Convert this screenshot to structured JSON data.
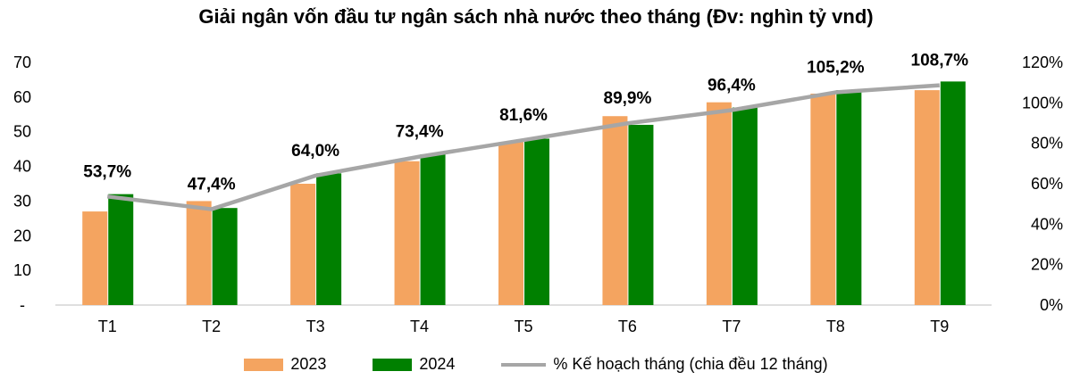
{
  "chart_data": {
    "type": "bar",
    "title": "Giải ngân vốn đầu tư ngân sách nhà nước theo tháng (Đv: nghìn tỷ vnd)",
    "categories": [
      "T1",
      "T2",
      "T3",
      "T4",
      "T5",
      "T6",
      "T7",
      "T8",
      "T9"
    ],
    "series": [
      {
        "name": "2023",
        "type": "bar",
        "axis": "left",
        "color": "#F4A460",
        "values": [
          27,
          30,
          35,
          41.5,
          47,
          54.5,
          58.5,
          61,
          62
        ]
      },
      {
        "name": "2024",
        "type": "bar",
        "axis": "right_as_left",
        "color": "#008000",
        "values": [
          32,
          28,
          38,
          43.5,
          48,
          52,
          57,
          62,
          64.5
        ]
      },
      {
        "name": "% Kế hoạch tháng (chia đều 12 tháng)",
        "type": "line",
        "axis": "right",
        "color": "#A6A6A6",
        "values": [
          53.7,
          47.4,
          64.0,
          73.4,
          81.6,
          89.9,
          96.4,
          105.2,
          108.7
        ],
        "labels": [
          "53,7%",
          "47,4%",
          "64,0%",
          "73,4%",
          "81,6%",
          "89,9%",
          "96,4%",
          "105,2%",
          "108,7%"
        ]
      }
    ],
    "y_left": {
      "ylim": [
        0,
        70
      ],
      "ticks": [
        "-",
        "10",
        "20",
        "30",
        "40",
        "50",
        "60",
        "70"
      ]
    },
    "y_right": {
      "ylim": [
        0,
        120
      ],
      "ticks": [
        "0%",
        "20%",
        "40%",
        "60%",
        "80%",
        "100%",
        "120%"
      ]
    },
    "legend_position": "bottom",
    "grid": false
  }
}
